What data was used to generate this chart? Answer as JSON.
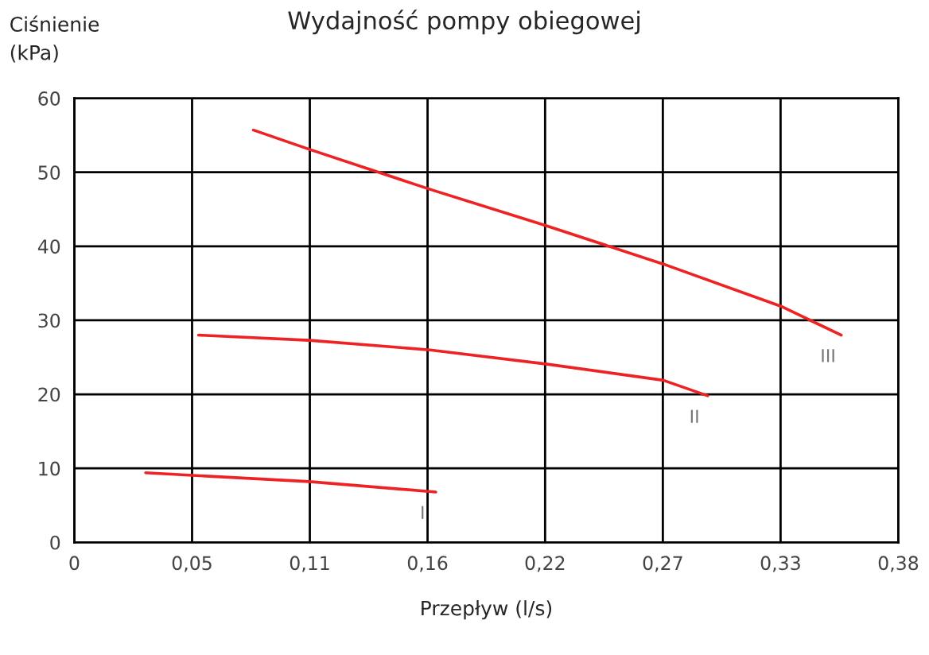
{
  "chart_data": {
    "type": "line",
    "title": "Wydajność pompy obiegowej",
    "xlabel": "Przepływ (l/s)",
    "ylabel": "Ciśnienie\n(kPa)",
    "series": [
      {
        "name": "I",
        "color": "#ee2222",
        "x": [
          0.0329,
          0.1084,
          0.1667
        ],
        "values": [
          9.4,
          8.2,
          6.8
        ]
      },
      {
        "name": "II",
        "color": "#ee2222",
        "x": [
          0.0573,
          0.1084,
          0.164,
          0.2174,
          0.2716,
          0.2921
        ],
        "values": [
          28.0,
          27.3,
          26.0,
          24.1,
          21.9,
          19.8
        ]
      },
      {
        "name": "III",
        "color": "#ee2222",
        "x": [
          0.0826,
          0.1084,
          0.164,
          0.2174,
          0.2716,
          0.3258,
          0.3537
        ],
        "values": [
          55.7,
          53.1,
          47.7,
          42.8,
          37.6,
          31.9,
          28.0
        ]
      }
    ],
    "xlim": [
      0,
      0.38
    ],
    "ylim": [
      0,
      60
    ],
    "xticks": [
      0,
      {
        "value": 0.0543,
        "label": "0,05"
      },
      {
        "value": 0.1086,
        "label": "0,11"
      },
      {
        "value": 0.1629,
        "label": "0,16"
      },
      {
        "value": 0.2171,
        "label": "0,22"
      },
      {
        "value": 0.2714,
        "label": "0,27"
      },
      {
        "value": 0.3257,
        "label": "0,33"
      },
      {
        "value": 0.38,
        "label": "0,38"
      }
    ],
    "yticks": [
      0,
      10,
      20,
      30,
      40,
      50,
      60
    ],
    "grid": true,
    "legend": false,
    "marker": "none",
    "line_style": "solid"
  }
}
